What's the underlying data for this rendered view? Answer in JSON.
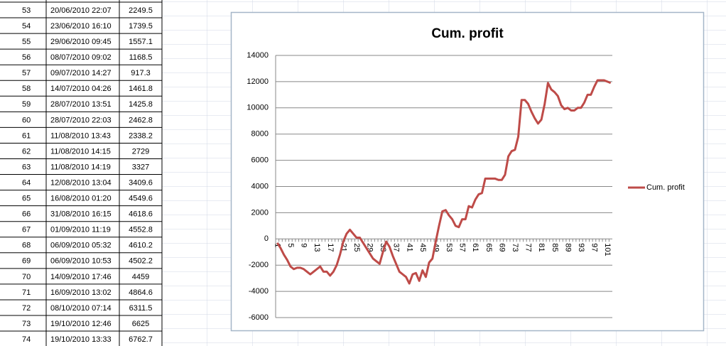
{
  "table": {
    "rows": [
      [
        53,
        "20/06/2010 22:07",
        2249.5
      ],
      [
        54,
        "23/06/2010 16:10",
        1739.5
      ],
      [
        55,
        "29/06/2010 09:45",
        1557.1
      ],
      [
        56,
        "08/07/2010 09:02",
        1168.5
      ],
      [
        57,
        "09/07/2010 14:27",
        917.3
      ],
      [
        58,
        "14/07/2010 04:26",
        1461.8
      ],
      [
        59,
        "28/07/2010 13:51",
        1425.8
      ],
      [
        60,
        "28/07/2010 22:03",
        2462.8
      ],
      [
        61,
        "11/08/2010 13:43",
        2338.2
      ],
      [
        62,
        "11/08/2010 14:15",
        2729
      ],
      [
        63,
        "11/08/2010 14:19",
        3327
      ],
      [
        64,
        "12/08/2010 13:04",
        3409.6
      ],
      [
        65,
        "16/08/2010 01:20",
        4549.6
      ],
      [
        66,
        "31/08/2010 16:15",
        4618.6
      ],
      [
        67,
        "01/09/2010 11:19",
        4552.8
      ],
      [
        68,
        "06/09/2010 05:32",
        4610.2
      ],
      [
        69,
        "06/09/2010 10:53",
        4502.2
      ],
      [
        70,
        "14/09/2010 17:46",
        4459
      ],
      [
        71,
        "16/09/2010 13:02",
        4864.6
      ],
      [
        72,
        "08/10/2010 07:14",
        6311.5
      ],
      [
        73,
        "19/10/2010 12:46",
        6625
      ],
      [
        74,
        "19/10/2010 13:33",
        6762.7
      ]
    ]
  },
  "chart_data": {
    "type": "line",
    "title": "Cum. profit",
    "categories": [
      1,
      null,
      null,
      null,
      5,
      null,
      null,
      null,
      9,
      null,
      null,
      null,
      13,
      null,
      null,
      null,
      17,
      null,
      null,
      null,
      21,
      null,
      null,
      null,
      25,
      null,
      null,
      null,
      29,
      null,
      null,
      null,
      33,
      null,
      null,
      null,
      37,
      null,
      null,
      null,
      41,
      null,
      null,
      null,
      45,
      null,
      null,
      null,
      49,
      null,
      null,
      null,
      53,
      null,
      null,
      null,
      57,
      null,
      null,
      null,
      61,
      null,
      null,
      null,
      65,
      null,
      null,
      null,
      69,
      null,
      null,
      null,
      73,
      null,
      null,
      null,
      77,
      null,
      null,
      null,
      81,
      null,
      null,
      null,
      85,
      null,
      null,
      null,
      89,
      null,
      null,
      null,
      93,
      null,
      null,
      null,
      97,
      null,
      null,
      null,
      101,
      null
    ],
    "series": [
      {
        "name": "Cum. profit",
        "color": "#be4b48",
        "values": [
          -300,
          -700,
          -1200,
          -1600,
          -2100,
          -2300,
          -2200,
          -2200,
          -2300,
          -2500,
          -2700,
          -2500,
          -2300,
          -2100,
          -2500,
          -2500,
          -2800,
          -2500,
          -2000,
          -1200,
          -200,
          400,
          700,
          400,
          100,
          100,
          -300,
          -700,
          -1100,
          -1500,
          -1700,
          -1900,
          -1000,
          -200,
          -600,
          -1300,
          -1900,
          -2500,
          -2700,
          -2900,
          -3400,
          -2700,
          -2600,
          -3200,
          -2400,
          -2900,
          -1800,
          -1500,
          -200,
          1000,
          2100,
          2200,
          1800,
          1500,
          1000,
          900,
          1500,
          1500,
          2500,
          2400,
          3000,
          3400,
          3500,
          4600,
          4600,
          4600,
          4600,
          4500,
          4500,
          4900,
          6300,
          6700,
          6800,
          7800,
          10600,
          10600,
          10300,
          9700,
          9200,
          8800,
          9100,
          10300,
          11900,
          11400,
          11200,
          10900,
          10200,
          9900,
          10000,
          9800,
          9800,
          10000,
          10000,
          10400,
          11000,
          11000,
          11600,
          12100,
          12100,
          12100,
          12000,
          11900
        ]
      }
    ],
    "ylim": [
      -6000,
      14000
    ],
    "yticks": [
      -6000,
      -4000,
      -2000,
      0,
      2000,
      4000,
      6000,
      8000,
      10000,
      12000,
      14000
    ],
    "grid": true,
    "legend": "right"
  }
}
